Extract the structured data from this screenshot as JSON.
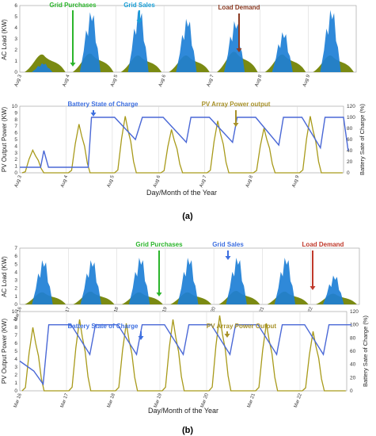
{
  "colors": {
    "grid_sales": "#1d7fd6",
    "grid_purchases": "#7a8a12",
    "battery": "#4a68d6",
    "pv": "#a89a1a",
    "label_green": "#2bb52b",
    "label_cyan": "#1aa0d8",
    "label_brown": "#8b3a22",
    "label_blue": "#3d6fe0",
    "label_olive": "#a8922a",
    "label_red": "#c0392b"
  },
  "caption_a": "(a)",
  "caption_b": "(b)",
  "chart_data": [
    {
      "id": "a-load",
      "type": "area",
      "ylabel": "AC Load (KW)",
      "ylim": [
        0,
        6
      ],
      "yticks": [
        0,
        1,
        2,
        3,
        4,
        5,
        6
      ],
      "categories": [
        "Aug 3",
        "Aug 4",
        "Aug 5",
        "Aug 6",
        "Aug 7",
        "Aug 8",
        "Aug 9"
      ],
      "annotations": [
        "Grid Purchases",
        "Grid Sales",
        "Load Demand"
      ],
      "series": [
        {
          "key": "sales",
          "peaks": [
            0.8,
            5.4,
            5.6,
            4.8,
            4.6,
            3.6,
            5.6
          ]
        },
        {
          "key": "purchases",
          "peaks": [
            1.9,
            2.0,
            1.8,
            1.8,
            2.2,
            1.9,
            1.8
          ]
        }
      ]
    },
    {
      "id": "a-pv",
      "type": "line",
      "ylabel": "PV Output Power (KW)",
      "y2label": "Battery Sate of Charge (%)",
      "xlabel": "Day/Month of the Year",
      "ylim": [
        0,
        10
      ],
      "yticks": [
        0,
        1,
        2,
        3,
        4,
        5,
        6,
        7,
        8,
        9,
        10
      ],
      "y2lim": [
        0,
        120
      ],
      "y2ticks": [
        0,
        20,
        40,
        60,
        80,
        100,
        120
      ],
      "categories": [
        "Aug 3",
        "Aug 4",
        "Aug 5",
        "Aug 6",
        "Aug 7",
        "Aug 8",
        "Aug 9"
      ],
      "annotations": [
        "Battery State of Charge",
        "PV Array Power output"
      ],
      "series": [
        {
          "key": "soc",
          "points": [
            [
              0,
              10
            ],
            [
              0.45,
              10
            ],
            [
              0.52,
              40
            ],
            [
              0.62,
              10
            ],
            [
              1.48,
              10
            ],
            [
              1.55,
              100
            ],
            [
              2.05,
              100
            ],
            [
              2.5,
              60
            ],
            [
              2.65,
              100
            ],
            [
              3.1,
              100
            ],
            [
              3.6,
              55
            ],
            [
              3.7,
              100
            ],
            [
              4.1,
              100
            ],
            [
              4.6,
              55
            ],
            [
              4.7,
              100
            ],
            [
              5.1,
              100
            ],
            [
              5.6,
              50
            ],
            [
              5.7,
              100
            ],
            [
              6.1,
              100
            ],
            [
              6.5,
              45
            ],
            [
              6.6,
              100
            ],
            [
              7.0,
              100
            ],
            [
              7.1,
              40
            ]
          ]
        },
        {
          "key": "pv",
          "peaks": [
            3.4,
            7.3,
            8.5,
            6.5,
            7.8,
            6.7,
            8.5
          ]
        }
      ]
    },
    {
      "id": "b-load",
      "type": "area",
      "ylabel": "AC Load (KW)",
      "ylim": [
        0,
        7
      ],
      "yticks": [
        0,
        1,
        2,
        3,
        4,
        5,
        6,
        7
      ],
      "categories": [
        "Mar 16",
        "Mar 17",
        "Mar 18",
        "Mar 19",
        "Mar 20",
        "Mar 21",
        "Mar 22"
      ],
      "annotations": [
        "Grid Purchases",
        "Grid Sales",
        "Load Demand"
      ],
      "series": [
        {
          "key": "sales",
          "peaks": [
            5.5,
            5.5,
            5.8,
            5.8,
            5.8,
            5.8,
            3.6
          ]
        },
        {
          "key": "purchases",
          "peaks": [
            1.8,
            1.9,
            1.8,
            1.8,
            2.0,
            1.9,
            1.6
          ]
        }
      ]
    },
    {
      "id": "b-pv",
      "type": "line",
      "ylabel": "PV Output Power (KW)",
      "y2label": "Battery Sate of Charge (%)",
      "xlabel": "Day/Month of the Year",
      "ylim": [
        0,
        10
      ],
      "yticks": [
        0,
        1,
        2,
        3,
        4,
        5,
        6,
        7,
        8,
        9,
        10
      ],
      "y2lim": [
        0,
        120
      ],
      "y2ticks": [
        0,
        20,
        40,
        60,
        80,
        100,
        120
      ],
      "categories": [
        "Mar 16",
        "Mar 17",
        "Mar 18",
        "Mar 19",
        "Mar 20",
        "Mar 21",
        "Mar 22"
      ],
      "annotations": [
        "Battery State of Charge",
        "PV Array Power Output"
      ],
      "series": [
        {
          "key": "soc",
          "points": [
            [
              0,
              45
            ],
            [
              0.3,
              30
            ],
            [
              0.5,
              10
            ],
            [
              0.62,
              100
            ],
            [
              1.1,
              100
            ],
            [
              1.5,
              55
            ],
            [
              1.62,
              100
            ],
            [
              2.1,
              100
            ],
            [
              2.5,
              55
            ],
            [
              2.62,
              100
            ],
            [
              3.1,
              100
            ],
            [
              3.5,
              55
            ],
            [
              3.62,
              100
            ],
            [
              4.1,
              100
            ],
            [
              4.5,
              55
            ],
            [
              4.62,
              100
            ],
            [
              5.1,
              100
            ],
            [
              5.5,
              55
            ],
            [
              5.62,
              100
            ],
            [
              6.1,
              100
            ],
            [
              6.5,
              55
            ],
            [
              6.62,
              100
            ],
            [
              7.1,
              100
            ]
          ]
        },
        {
          "key": "pv",
          "peaks": [
            8.0,
            9.0,
            8.5,
            9.0,
            9.5,
            8.5,
            7.5
          ]
        }
      ]
    }
  ]
}
